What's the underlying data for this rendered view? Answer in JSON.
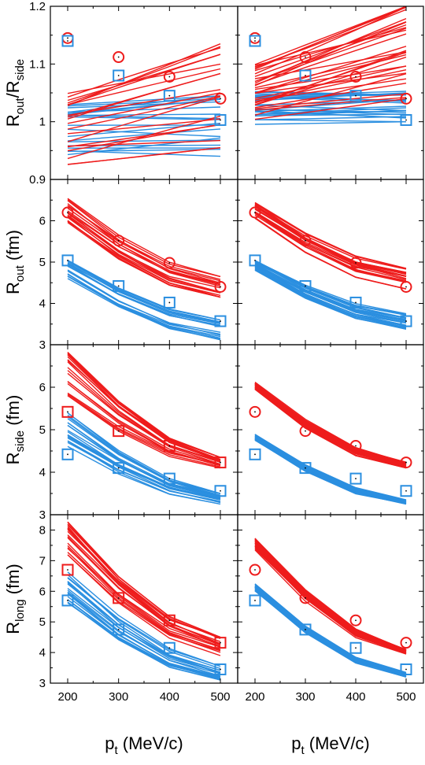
{
  "colors": {
    "model_a": "#ee1c1c",
    "model_b": "#2b8fe0"
  },
  "chart_data": [
    {
      "type": "line",
      "panel": "top-left",
      "ylabel": {
        "main": "R",
        "sub": "out",
        "sep": "/R",
        "sub2": "side"
      },
      "ylim": [
        0.9,
        1.2
      ],
      "yticks": [
        "0.9",
        "1",
        "1.1",
        "1.2"
      ],
      "x": [
        200,
        300,
        400,
        500
      ],
      "markers": [
        {
          "name": "circles",
          "shape": "circle",
          "color": "model_a",
          "values": [
            1.145,
            1.112,
            1.078,
            1.04
          ]
        },
        {
          "name": "squares",
          "shape": "square",
          "color": "model_b",
          "values": [
            1.14,
            1.08,
            1.045,
            1.003
          ]
        }
      ]
    },
    {
      "type": "line",
      "panel": "top-right",
      "ylim": [
        0.9,
        1.2
      ],
      "x": [
        200,
        300,
        400,
        500
      ],
      "markers": [
        {
          "name": "circles",
          "shape": "circle",
          "color": "model_a",
          "values": [
            1.145,
            1.112,
            1.078,
            1.04
          ]
        },
        {
          "name": "squares",
          "shape": "square",
          "color": "model_b",
          "values": [
            1.14,
            1.08,
            1.045,
            1.003
          ]
        }
      ]
    },
    {
      "type": "line",
      "panel": "row2-left",
      "ylabel": {
        "main": "R",
        "sub": "out",
        "unit": " (fm)"
      },
      "ylim": [
        3,
        7
      ],
      "yticks": [
        "3",
        "4",
        "5",
        "6"
      ],
      "x": [
        200,
        300,
        400,
        500
      ],
      "markers": [
        {
          "name": "circles",
          "shape": "circle",
          "color": "model_a",
          "values": [
            6.2,
            5.52,
            4.98,
            4.4
          ]
        },
        {
          "name": "squares",
          "shape": "square",
          "color": "model_b",
          "values": [
            5.04,
            4.42,
            4.02,
            3.57
          ]
        }
      ]
    },
    {
      "type": "line",
      "panel": "row2-right",
      "ylim": [
        3,
        7
      ],
      "x": [
        200,
        300,
        400,
        500
      ],
      "markers": [
        {
          "name": "circles",
          "shape": "circle",
          "color": "model_a",
          "values": [
            6.2,
            5.52,
            4.98,
            4.4
          ]
        },
        {
          "name": "squares",
          "shape": "square",
          "color": "model_b",
          "values": [
            5.04,
            4.42,
            4.02,
            3.57
          ]
        }
      ]
    },
    {
      "type": "line",
      "panel": "row3-left",
      "ylabel": {
        "main": "R",
        "sub": "side",
        "unit": " (fm)"
      },
      "ylim": [
        3,
        7
      ],
      "yticks": [
        "3",
        "4",
        "5",
        "6"
      ],
      "x": [
        200,
        300,
        400,
        500
      ],
      "markers": [
        {
          "name": "squares-a",
          "shape": "square",
          "color": "model_a",
          "values": [
            5.42,
            4.97,
            4.62,
            4.23
          ]
        },
        {
          "name": "squares-b",
          "shape": "square",
          "color": "model_b",
          "values": [
            4.42,
            4.1,
            3.85,
            3.56
          ]
        }
      ]
    },
    {
      "type": "line",
      "panel": "row3-right",
      "ylim": [
        3,
        7
      ],
      "x": [
        200,
        300,
        400,
        500
      ],
      "markers": [
        {
          "name": "circles",
          "shape": "circle",
          "color": "model_a",
          "values": [
            5.42,
            4.97,
            4.62,
            4.23
          ]
        },
        {
          "name": "squares",
          "shape": "square",
          "color": "model_b",
          "values": [
            4.42,
            4.1,
            3.85,
            3.56
          ]
        }
      ]
    },
    {
      "type": "line",
      "panel": "row4-left",
      "ylabel": {
        "main": "R",
        "sub": "long",
        "unit": " (fm)"
      },
      "ylim": [
        3,
        8.5
      ],
      "yticks": [
        "3",
        "4",
        "5",
        "6",
        "7",
        "8"
      ],
      "x": [
        200,
        300,
        400,
        500
      ],
      "xticks": [
        "200",
        "300",
        "400",
        "500"
      ],
      "xlabel": {
        "main": "p",
        "sub": "t",
        "unit": " (MeV/c)"
      },
      "markers": [
        {
          "name": "squares-a",
          "shape": "square",
          "color": "model_a",
          "values": [
            6.7,
            5.78,
            5.05,
            4.32
          ]
        },
        {
          "name": "squares-b",
          "shape": "square",
          "color": "model_b",
          "values": [
            5.7,
            4.75,
            4.15,
            3.45
          ]
        }
      ]
    },
    {
      "type": "line",
      "panel": "row4-right",
      "ylim": [
        3,
        8.5
      ],
      "x": [
        200,
        300,
        400,
        500
      ],
      "xticks": [
        "200",
        "300",
        "400",
        "500"
      ],
      "xlabel": {
        "main": "p",
        "sub": "t",
        "unit": " (MeV/c)"
      },
      "markers": [
        {
          "name": "circles",
          "shape": "circle",
          "color": "model_a",
          "values": [
            6.7,
            5.78,
            5.05,
            4.32
          ]
        },
        {
          "name": "squares",
          "shape": "square",
          "color": "model_b",
          "values": [
            5.7,
            4.75,
            4.15,
            3.45
          ]
        }
      ]
    }
  ],
  "model_bands": [
    {
      "panel_pair": "row1",
      "left": {
        "model_a": {
          "start": [
            0.925,
            1.055
          ],
          "end": [
            0.955,
            1.135
          ],
          "count": 20
        },
        "model_b": {
          "start": [
            0.925,
            1.03
          ],
          "end": [
            0.93,
            1.045
          ],
          "count": 20
        }
      },
      "right": {
        "model_a": {
          "start": [
            1.0,
            1.1
          ],
          "end": [
            1.04,
            1.2
          ],
          "count": 30
        },
        "model_b": {
          "start": [
            0.995,
            1.065
          ],
          "end": [
            1.0,
            1.065
          ],
          "count": 25
        }
      }
    },
    {
      "panel_pair": "row2",
      "left": {
        "model_a": {
          "start": [
            5.95,
            6.55
          ],
          "end": [
            4.15,
            4.65
          ],
          "count": 20
        },
        "model_b": {
          "start": [
            4.6,
            5.05
          ],
          "end": [
            3.12,
            3.6
          ],
          "count": 20
        }
      },
      "right": {
        "model_a": {
          "start": [
            6.05,
            6.45
          ],
          "end": [
            4.35,
            4.85
          ],
          "count": 25
        },
        "model_b": {
          "start": [
            4.8,
            5.05
          ],
          "end": [
            3.35,
            3.75
          ],
          "count": 25
        }
      }
    },
    {
      "panel_pair": "row3",
      "left": {
        "model_a": {
          "start": [
            5.7,
            6.9
          ],
          "end": [
            4.1,
            4.35
          ],
          "count": 20
        },
        "model_b": {
          "start": [
            4.6,
            5.4
          ],
          "end": [
            3.25,
            3.5
          ],
          "count": 20
        }
      },
      "right": {
        "model_a": {
          "start": [
            5.95,
            6.15
          ],
          "end": [
            4.1,
            4.25
          ],
          "count": 25
        },
        "model_b": {
          "start": [
            4.75,
            4.9
          ],
          "end": [
            3.25,
            3.35
          ],
          "count": 25
        }
      }
    },
    {
      "panel_pair": "row4",
      "left": {
        "model_a": {
          "start": [
            7.1,
            8.3
          ],
          "end": [
            3.9,
            4.5
          ],
          "count": 20
        },
        "model_b": {
          "start": [
            5.6,
            6.7
          ],
          "end": [
            3.1,
            3.55
          ],
          "count": 20
        }
      },
      "right": {
        "model_a": {
          "start": [
            7.35,
            7.75
          ],
          "end": [
            3.95,
            4.1
          ],
          "count": 25
        },
        "model_b": {
          "start": [
            6.0,
            6.25
          ],
          "end": [
            3.2,
            3.35
          ],
          "count": 25
        }
      }
    }
  ]
}
